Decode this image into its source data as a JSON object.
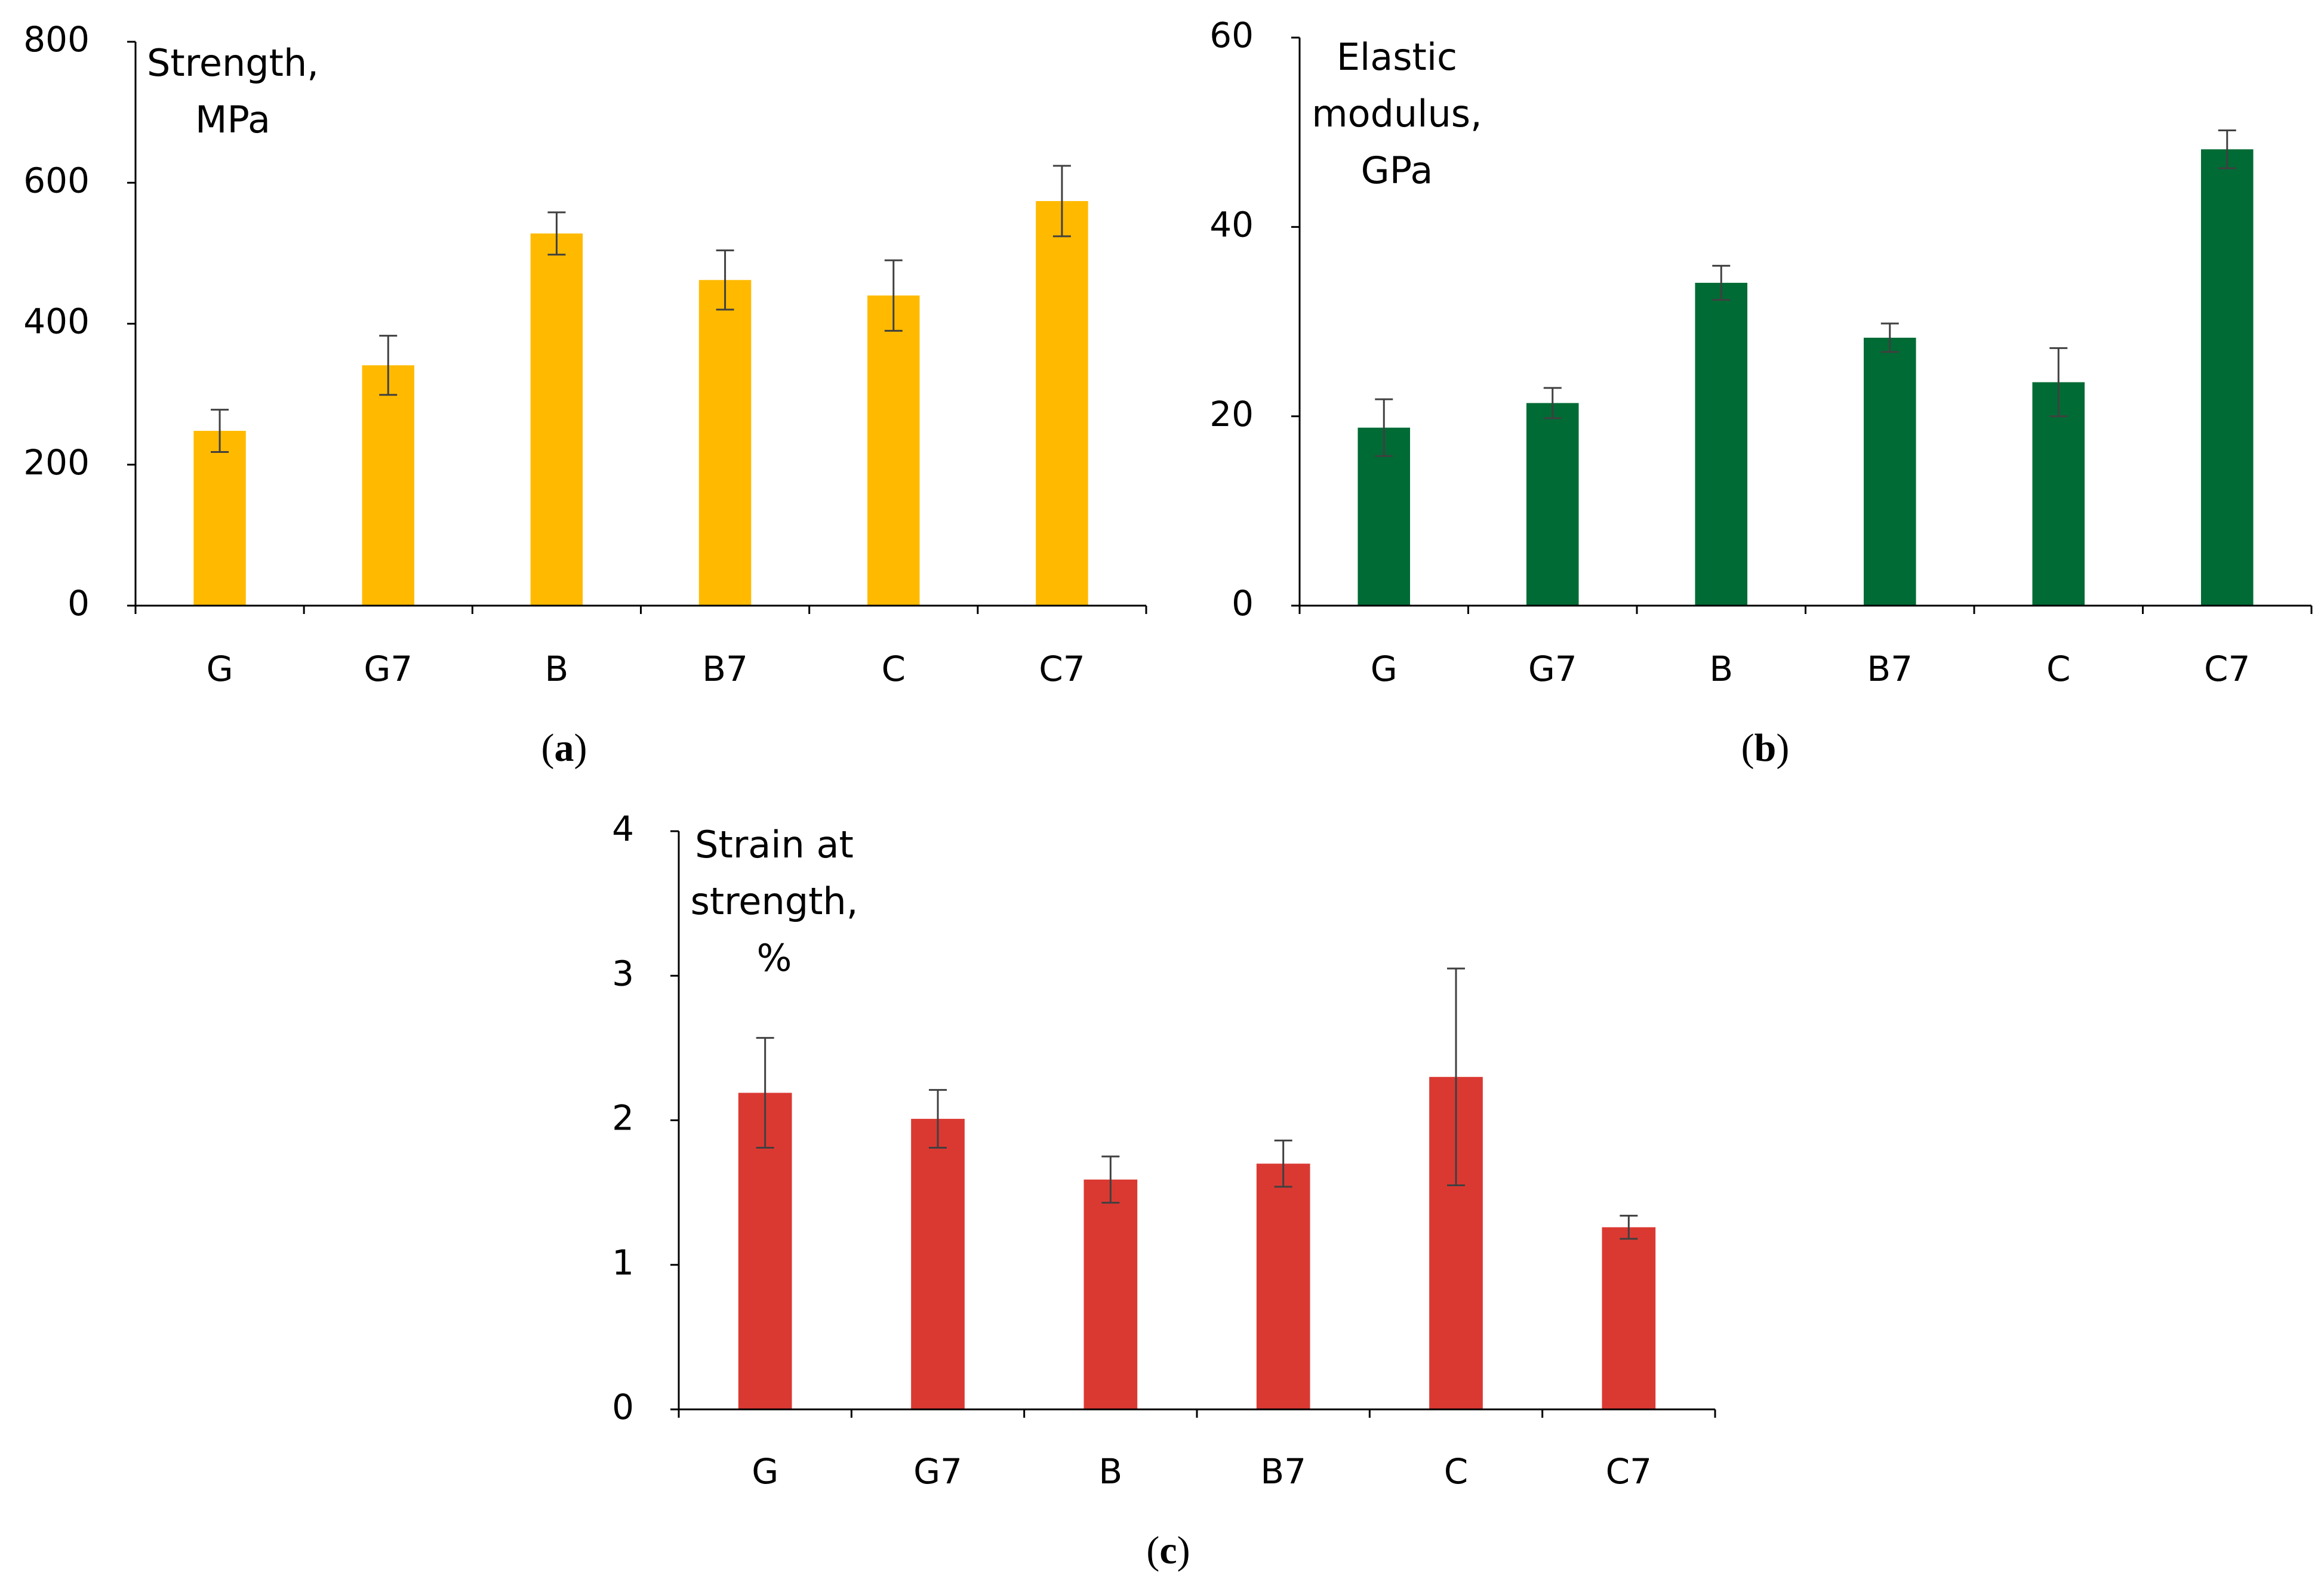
{
  "chart_data": [
    {
      "panel": "a",
      "type": "bar",
      "title": "",
      "ylabel_lines": [
        "Strength,",
        "MPa"
      ],
      "xlabel": "",
      "categories": [
        "G",
        "G7",
        "B",
        "B7",
        "C",
        "C7"
      ],
      "values": [
        248,
        341,
        528,
        462,
        440,
        574
      ],
      "errors": [
        30,
        42,
        30,
        42,
        50,
        50
      ],
      "ylim": [
        0,
        800
      ],
      "yticks": [
        0,
        200,
        400,
        600,
        800
      ],
      "color": "#FFBA00",
      "grid": false
    },
    {
      "panel": "b",
      "type": "bar",
      "title": "",
      "ylabel_lines": [
        "Elastic",
        "modulus,",
        "GPa"
      ],
      "xlabel": "",
      "categories": [
        "G",
        "G7",
        "B",
        "B7",
        "C",
        "C7"
      ],
      "values": [
        18.8,
        21.4,
        34.1,
        28.3,
        23.6,
        48.2
      ],
      "errors": [
        3.0,
        1.6,
        1.8,
        1.5,
        3.6,
        2.0
      ],
      "ylim": [
        0,
        60
      ],
      "yticks": [
        0,
        20,
        40,
        60
      ],
      "color": "#006B35",
      "grid": false
    },
    {
      "panel": "c",
      "type": "bar",
      "title": "",
      "ylabel_lines": [
        "Strain at",
        "strength,",
        "%"
      ],
      "xlabel": "",
      "categories": [
        "G",
        "G7",
        "B",
        "B7",
        "C",
        "C7"
      ],
      "values": [
        2.19,
        2.01,
        1.59,
        1.7,
        2.3,
        1.26
      ],
      "errors": [
        0.38,
        0.2,
        0.16,
        0.16,
        0.75,
        0.08
      ],
      "ylim": [
        0,
        4
      ],
      "yticks": [
        0,
        1,
        2,
        3,
        4
      ],
      "color": "#DA3932",
      "grid": false
    }
  ],
  "panel_labels": [
    {
      "panel": "a",
      "open": "(",
      "letter": "a",
      "close": ")"
    },
    {
      "panel": "b",
      "open": "(",
      "letter": "b",
      "close": ")"
    },
    {
      "panel": "c",
      "open": "(",
      "letter": "c",
      "close": ")"
    }
  ]
}
